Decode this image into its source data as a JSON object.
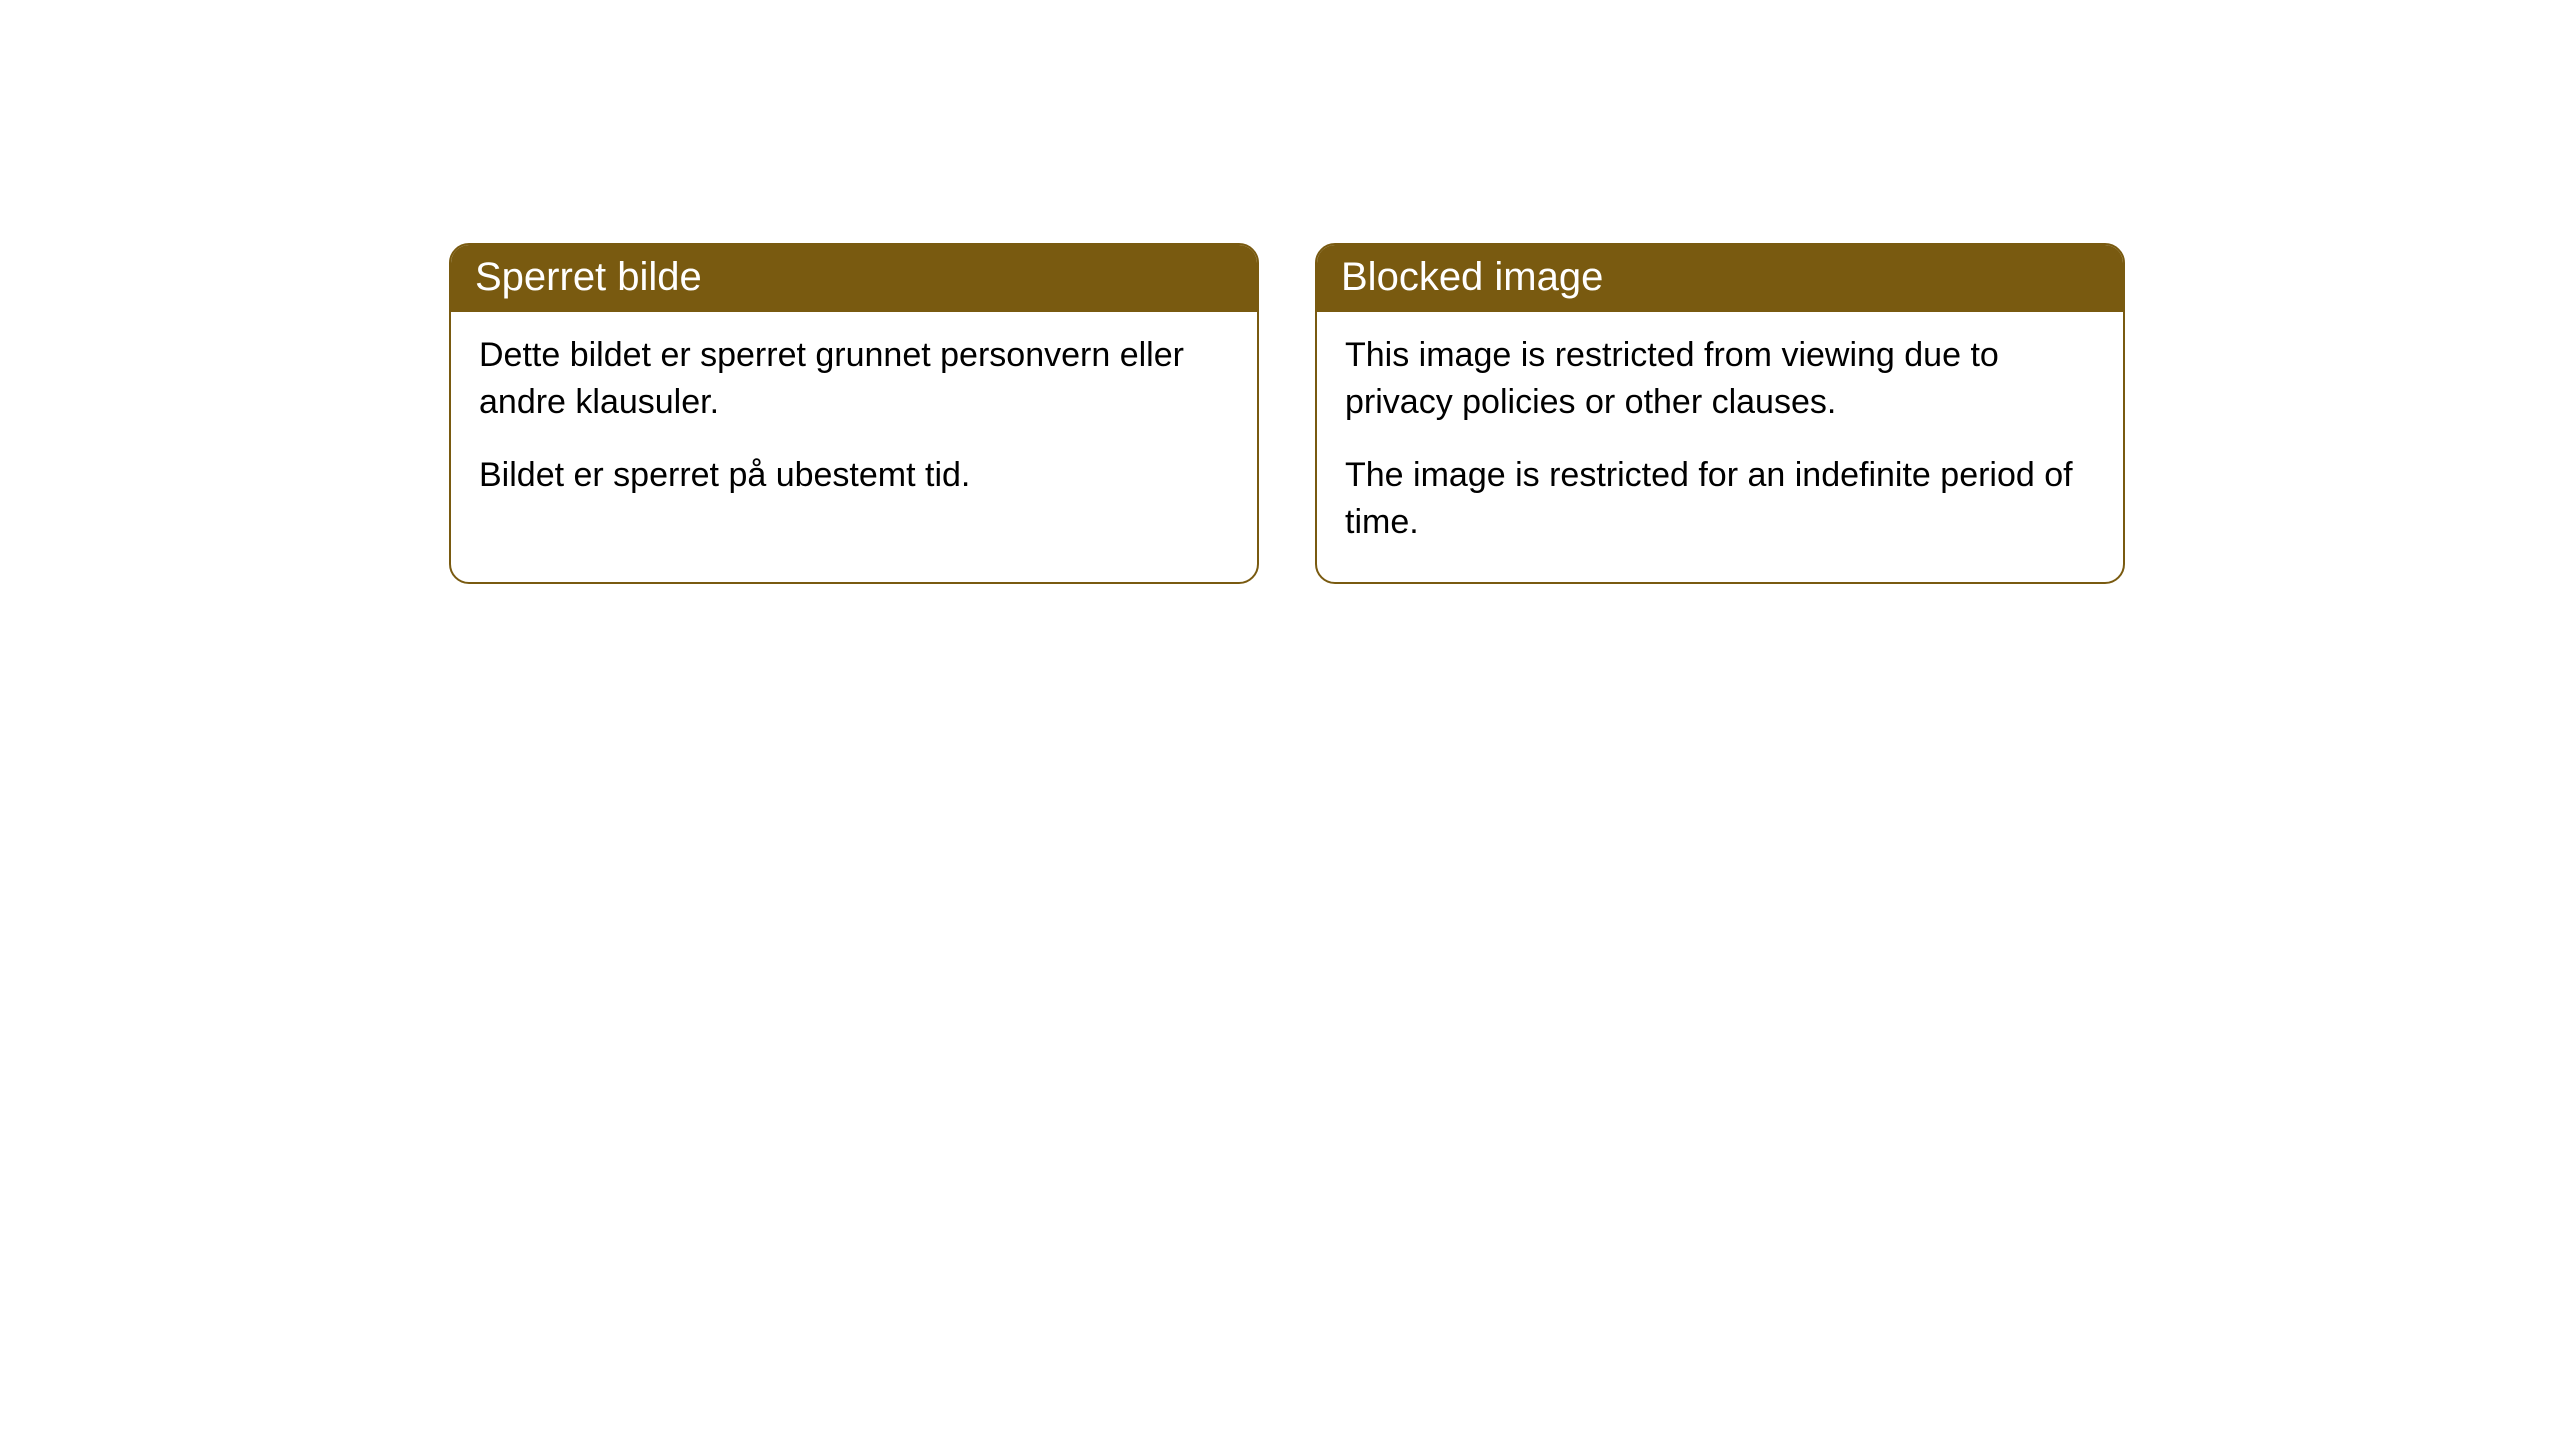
{
  "cards": [
    {
      "title": "Sperret bilde",
      "paragraph1": "Dette bildet er sperret grunnet personvern eller andre klausuler.",
      "paragraph2": "Bildet er sperret på ubestemt tid."
    },
    {
      "title": "Blocked image",
      "paragraph1": "This image is restricted from viewing due to privacy policies or other clauses.",
      "paragraph2": "The image is restricted for an indefinite period of time."
    }
  ],
  "style": {
    "header_bg_color": "#795a10",
    "header_text_color": "#ffffff",
    "border_color": "#795a10",
    "body_text_color": "#000000",
    "body_bg_color": "#ffffff",
    "border_radius": 20,
    "header_fontsize": 40,
    "body_fontsize": 34
  }
}
